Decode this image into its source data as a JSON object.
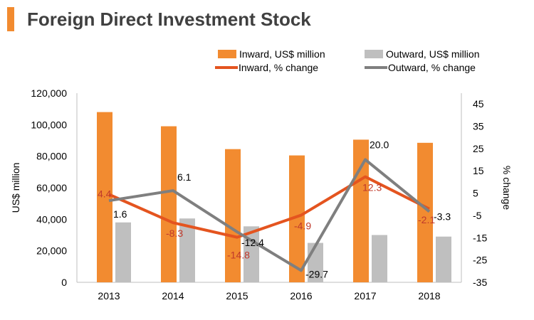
{
  "colors": {
    "inward_bar": "#f28b30",
    "outward_bar": "#bfbfbf",
    "inward_line": "#e4541f",
    "outward_line": "#7f7f7f",
    "inward_label": "#c0392b",
    "outward_label": "#000000",
    "title_accent": "#f28b30"
  },
  "chart_data": {
    "type": "bar",
    "title": "Foreign Direct Investment Stock",
    "ylabel": "US$ million",
    "y2label": "% change",
    "categories": [
      "2013",
      "2014",
      "2015",
      "2016",
      "2017",
      "2018"
    ],
    "ylim": [
      0,
      120000
    ],
    "yticks": [
      "0",
      "20,000",
      "40,000",
      "60,000",
      "80,000",
      "100,000",
      "120,000"
    ],
    "y2lim": [
      -35,
      45
    ],
    "y2ticks": [
      "-35",
      "-25",
      "-15",
      "-5",
      "5",
      "15",
      "25",
      "35",
      "45"
    ],
    "legend_position": "top-right",
    "series": [
      {
        "name": "Inward, US$ million",
        "kind": "bar",
        "values": [
          108000,
          99000,
          84500,
          80500,
          90500,
          88500
        ]
      },
      {
        "name": "Outward, US$ million",
        "kind": "bar",
        "values": [
          38000,
          40500,
          35500,
          25000,
          30000,
          29000
        ]
      },
      {
        "name": "Inward, % change",
        "kind": "line",
        "axis": "right",
        "values": [
          4.4,
          -8.3,
          -14.8,
          -4.9,
          12.3,
          -2.1
        ],
        "labels": [
          "4.4",
          "-8.3",
          "-14.8",
          "-4.9",
          "12.3",
          "-2.1"
        ]
      },
      {
        "name": "Outward, % change",
        "kind": "line",
        "axis": "right",
        "values": [
          1.6,
          6.1,
          -12.4,
          -29.7,
          20.0,
          -3.3
        ],
        "labels": [
          "1.6",
          "6.1",
          "-12.4",
          "-29.7",
          "20.0",
          "-3.3"
        ]
      }
    ]
  }
}
